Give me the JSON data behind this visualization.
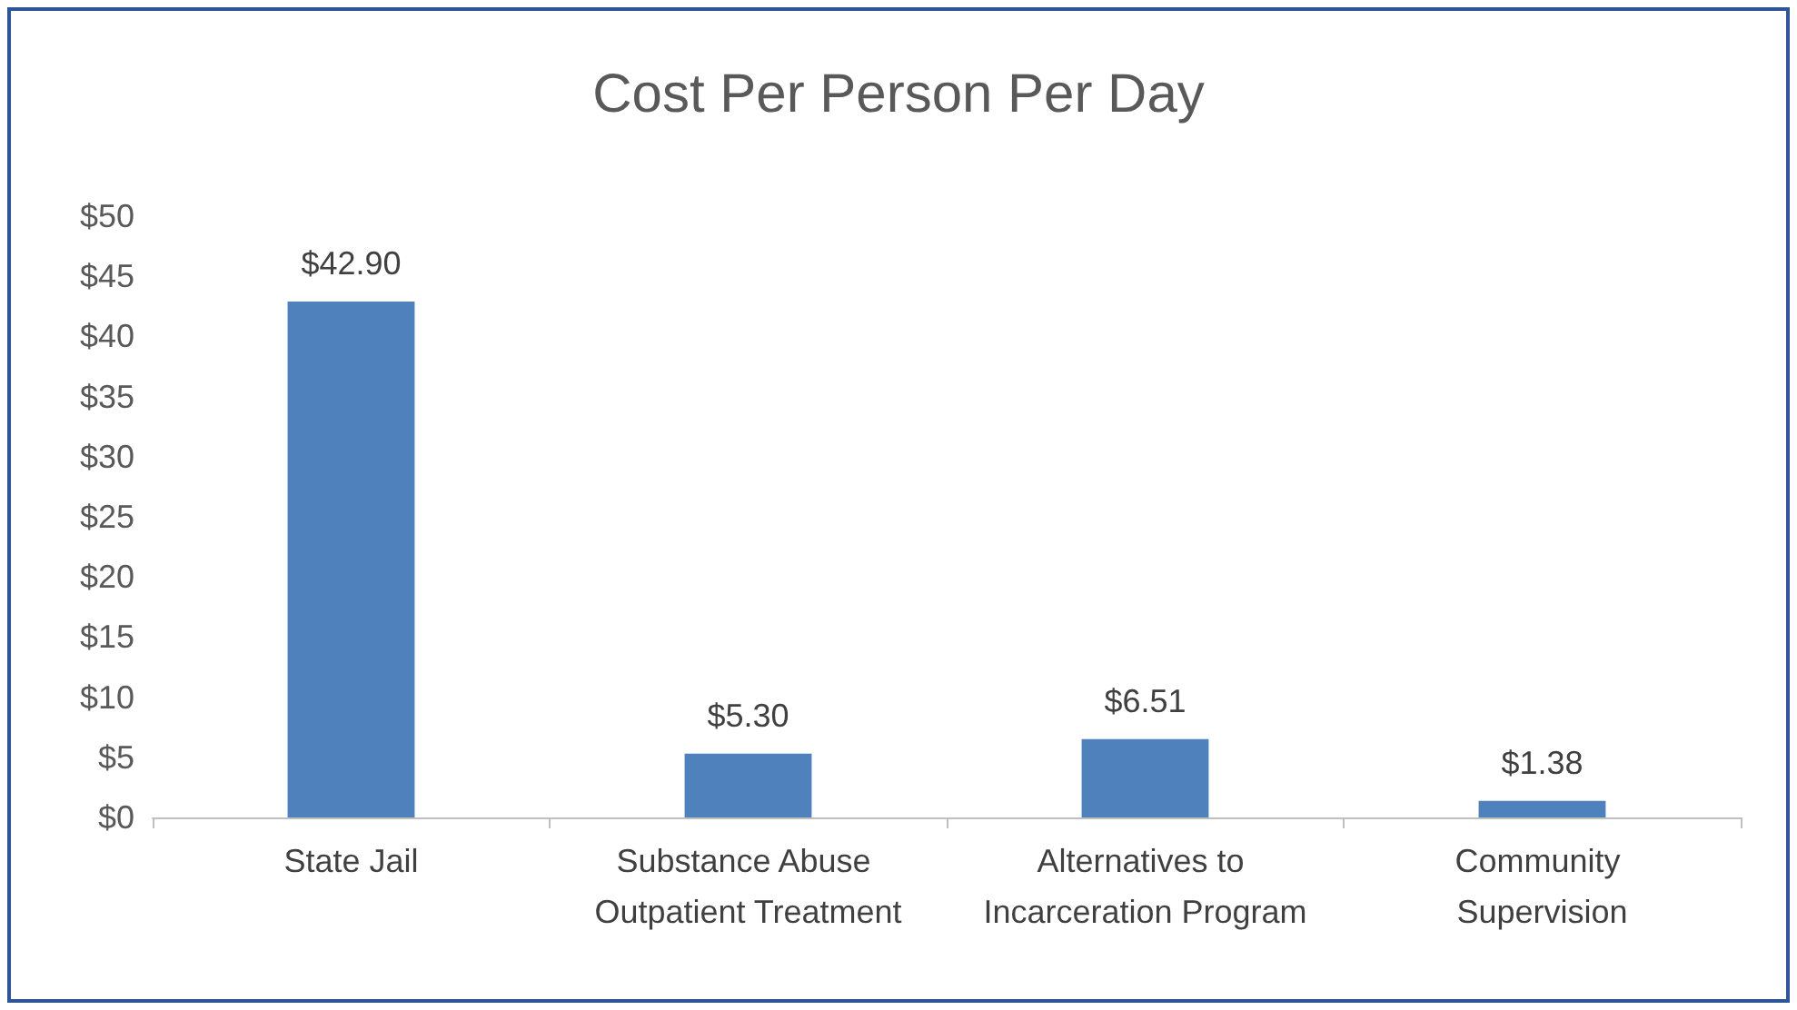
{
  "chart_data": {
    "type": "bar",
    "title": "Cost Per Person Per Day",
    "categories": [
      "State Jail",
      "Substance Abuse Outpatient Treatment",
      "Alternatives to Incarceration Program",
      "Community Supervision"
    ],
    "values": [
      42.9,
      5.3,
      6.51,
      1.38
    ],
    "value_labels": [
      "$42.90",
      "$5.30",
      "$6.51",
      "$1.38"
    ],
    "color": "#4f81bd",
    "ylim": [
      0,
      50
    ],
    "yticks": [
      {
        "value": 0,
        "label": "$0"
      },
      {
        "value": 5,
        "label": "$5"
      },
      {
        "value": 10,
        "label": "$10"
      },
      {
        "value": 15,
        "label": "$15"
      },
      {
        "value": 20,
        "label": "$20"
      },
      {
        "value": 25,
        "label": "$25"
      },
      {
        "value": 30,
        "label": "$30"
      },
      {
        "value": 35,
        "label": "$35"
      },
      {
        "value": 40,
        "label": "$40"
      },
      {
        "value": 45,
        "label": "$45"
      },
      {
        "value": 50,
        "label": "$50"
      }
    ],
    "grid": false
  }
}
